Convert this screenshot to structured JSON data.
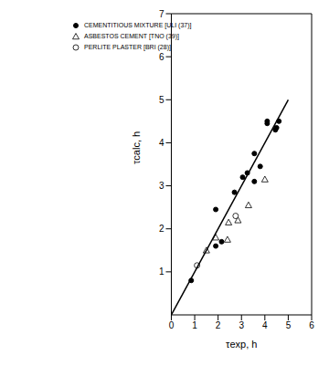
{
  "chart_data": {
    "type": "scatter",
    "x_label": "τexp, h",
    "y_label": "τcalc, h",
    "xlim": [
      0,
      6
    ],
    "ylim": [
      0,
      7
    ],
    "xticks": [
      0,
      1,
      2,
      3,
      4,
      5,
      6
    ],
    "yticks": [
      1,
      2,
      3,
      4,
      5,
      6,
      7
    ],
    "grid": false,
    "legend": "upper left",
    "series": [
      {
        "name": "CEMENTITIOUS MIXTURE [ULI (37)]",
        "color": "#000000",
        "marker": "filled_circle",
        "x": [
          0.85,
          1.9,
          1.9,
          2.15,
          2.7,
          3.05,
          3.25,
          3.55,
          3.55,
          3.8,
          4.1,
          4.1,
          4.45,
          4.5,
          4.6
        ],
        "values": [
          0.8,
          2.45,
          1.6,
          1.7,
          2.85,
          3.2,
          3.3,
          3.75,
          3.1,
          3.45,
          4.5,
          4.45,
          4.3,
          4.35,
          4.5
        ]
      },
      {
        "name": "ASBESTOS CEMENT [TNO (39)]",
        "color": "#000000",
        "marker": "open_triangle",
        "x": [
          1.5,
          1.9,
          2.4,
          2.45,
          2.85,
          3.3,
          4.0
        ],
        "values": [
          1.5,
          1.8,
          1.75,
          2.15,
          2.2,
          2.55,
          3.15
        ]
      },
      {
        "name": "PERLITE PLASTER [BRI (28)]",
        "color": "#000000",
        "marker": "open_circle",
        "x": [
          1.1,
          2.75
        ],
        "values": [
          1.15,
          2.3
        ]
      },
      {
        "type": "line",
        "color": "#000000",
        "line_style": "solid",
        "x": [
          0,
          5
        ],
        "values": [
          0,
          5
        ]
      }
    ]
  }
}
